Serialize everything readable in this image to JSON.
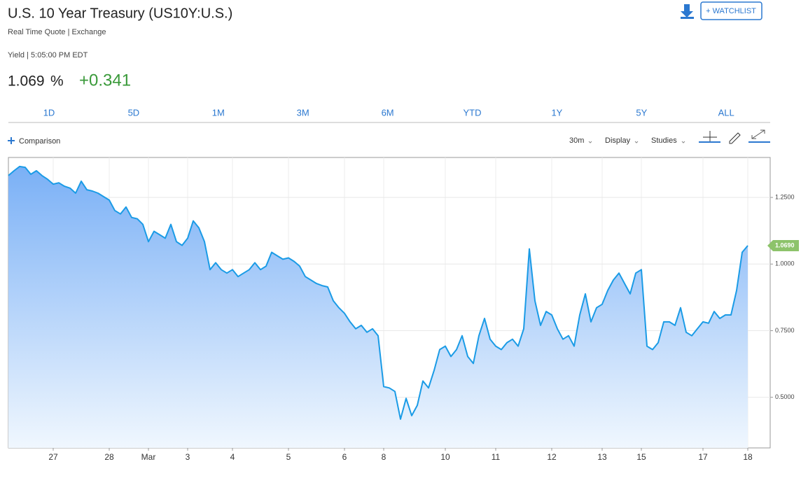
{
  "header": {
    "title": "U.S. 10 Year Treasury (US10Y:U.S.)",
    "subtitle": "Real Time Quote | Exchange",
    "quote_time": "Yield | 5:05:00 PM EDT",
    "price": "1.069",
    "price_unit": "%",
    "change": "+0.341",
    "watchlist": "+ WATCHLIST"
  },
  "ranges": [
    "1D",
    "5D",
    "1M",
    "3M",
    "6M",
    "YTD",
    "1Y",
    "5Y",
    "ALL"
  ],
  "toolbar": {
    "comparison": "Comparison",
    "interval": "30m",
    "display": "Display",
    "studies": "Studies"
  },
  "chart_data": {
    "type": "area",
    "categories": [
      null,
      null,
      null,
      null,
      null,
      null,
      null,
      null,
      "27",
      null,
      null,
      null,
      null,
      null,
      null,
      null,
      null,
      null,
      "28",
      null,
      null,
      null,
      null,
      null,
      null,
      "Mar",
      null,
      null,
      null,
      null,
      null,
      null,
      "3",
      null,
      null,
      null,
      null,
      null,
      null,
      null,
      "4",
      null,
      null,
      null,
      null,
      null,
      null,
      null,
      null,
      null,
      "5",
      null,
      null,
      null,
      null,
      null,
      null,
      null,
      null,
      null,
      "6",
      null,
      null,
      null,
      null,
      null,
      null,
      "8",
      null,
      null,
      null,
      null,
      null,
      null,
      null,
      null,
      null,
      null,
      "10",
      null,
      null,
      null,
      null,
      null,
      null,
      null,
      null,
      "11",
      null,
      null,
      null,
      null,
      null,
      null,
      null,
      null,
      null,
      "12",
      null,
      null,
      null,
      null,
      null,
      null,
      null,
      null,
      "13",
      null,
      null,
      null,
      null,
      null,
      null,
      "15",
      null,
      null,
      null,
      null,
      null,
      null,
      null,
      null,
      null,
      null,
      "17",
      null,
      null,
      null,
      null,
      null,
      null,
      null,
      "18"
    ],
    "values": [
      1.332,
      1.35,
      1.366,
      1.363,
      1.337,
      1.35,
      1.332,
      1.318,
      1.3,
      1.305,
      1.292,
      1.285,
      1.266,
      1.311,
      1.279,
      1.274,
      1.266,
      1.253,
      1.24,
      1.201,
      1.188,
      1.214,
      1.175,
      1.17,
      1.149,
      1.084,
      1.123,
      1.11,
      1.097,
      1.149,
      1.084,
      1.07,
      1.097,
      1.162,
      1.136,
      1.084,
      0.979,
      1.005,
      0.979,
      0.966,
      0.979,
      0.953,
      0.966,
      0.979,
      1.005,
      0.979,
      0.992,
      1.044,
      1.031,
      1.018,
      1.023,
      1.01,
      0.992,
      0.953,
      0.94,
      0.927,
      0.919,
      0.914,
      0.862,
      0.836,
      0.815,
      0.783,
      0.757,
      0.77,
      0.744,
      0.757,
      0.731,
      0.54,
      0.535,
      0.522,
      0.418,
      0.496,
      0.431,
      0.47,
      0.561,
      0.535,
      0.601,
      0.679,
      0.692,
      0.653,
      0.679,
      0.731,
      0.653,
      0.627,
      0.731,
      0.796,
      0.718,
      0.692,
      0.679,
      0.705,
      0.718,
      0.692,
      0.757,
      1.057,
      0.862,
      0.77,
      0.822,
      0.809,
      0.757,
      0.718,
      0.731,
      0.692,
      0.809,
      0.888,
      0.783,
      0.836,
      0.849,
      0.901,
      0.94,
      0.966,
      0.927,
      0.888,
      0.966,
      0.979,
      0.692,
      0.679,
      0.705,
      0.783,
      0.783,
      0.77,
      0.836,
      0.744,
      0.731,
      0.757,
      0.783,
      0.778,
      0.822,
      0.796,
      0.809,
      0.809,
      0.901,
      1.044,
      1.069
    ],
    "last_label": {
      "value": 1.069,
      "label": "1.0690"
    },
    "color": "#1a9be6",
    "ylim": [
      0.31,
      1.4
    ],
    "yticks": [
      {
        "value": 0.5,
        "label": "0.5000"
      },
      {
        "value": 0.75,
        "label": "0.7500"
      },
      {
        "value": 1.0,
        "label": "1.0000"
      },
      {
        "value": 1.25,
        "label": "1.2500"
      }
    ],
    "grid": true
  }
}
